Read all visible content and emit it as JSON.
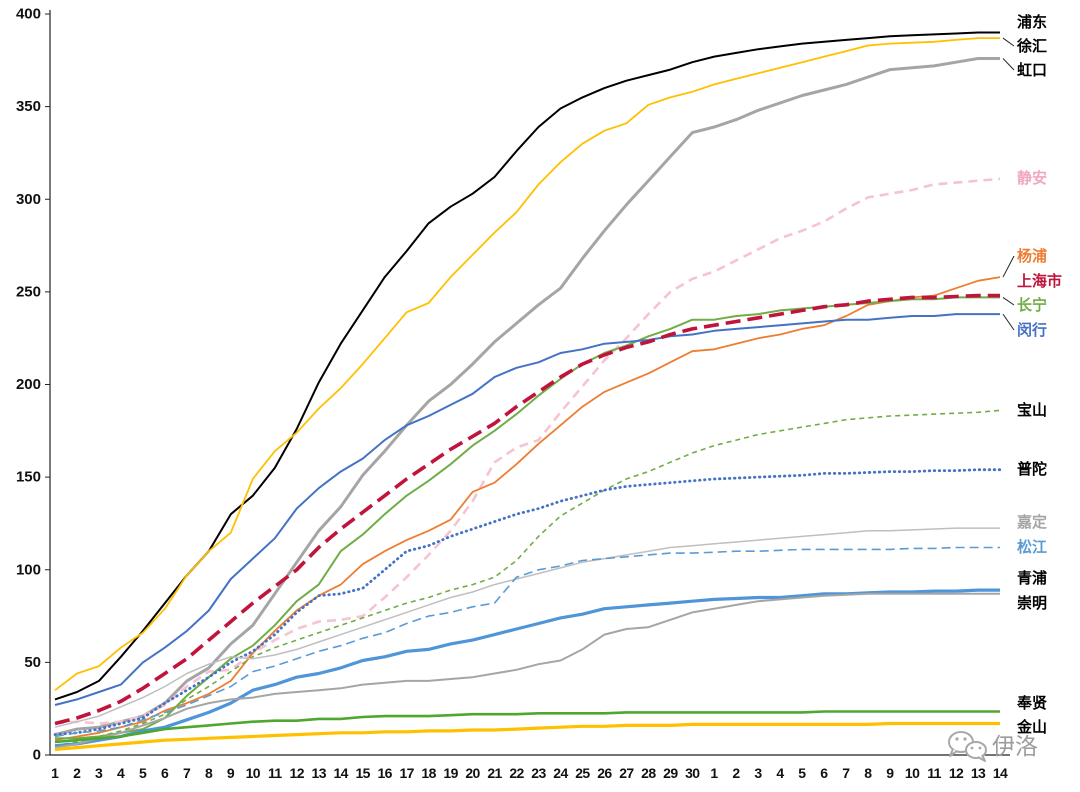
{
  "chart_data": {
    "type": "line",
    "grid": false,
    "legend": "right",
    "ylim": [
      0,
      400
    ],
    "yticks": [
      0,
      50,
      100,
      150,
      200,
      250,
      300,
      350,
      400
    ],
    "categories": [
      "1",
      "2",
      "3",
      "4",
      "5",
      "6",
      "7",
      "8",
      "9",
      "10",
      "11",
      "12",
      "13",
      "14",
      "15",
      "16",
      "17",
      "18",
      "19",
      "20",
      "21",
      "22",
      "23",
      "24",
      "25",
      "26",
      "27",
      "28",
      "29",
      "30",
      "1",
      "2",
      "3",
      "4",
      "5",
      "6",
      "7",
      "8",
      "9",
      "10",
      "11",
      "12",
      "13",
      "14"
    ],
    "series": [
      {
        "name": "浦东",
        "color": "#000000",
        "label_color": "#000000",
        "values": [
          30,
          34,
          40,
          53,
          67,
          82,
          97,
          110,
          130,
          140,
          155,
          176,
          201,
          222,
          240,
          258,
          272,
          287,
          296,
          303,
          312,
          326,
          339,
          349,
          355,
          360,
          364,
          367,
          370,
          374,
          377,
          379,
          381,
          382.5,
          384,
          385,
          386,
          387,
          388,
          388.5,
          389,
          389.5,
          390,
          390
        ]
      },
      {
        "name": "徐汇",
        "color": "#FFC000",
        "label_color": "#000000",
        "values": [
          35,
          44,
          48,
          58,
          66,
          79,
          97,
          110,
          120,
          149,
          164,
          174,
          187,
          198,
          211,
          225,
          239,
          244,
          258,
          270,
          282,
          293,
          308,
          320,
          330,
          337,
          341,
          351,
          355,
          358,
          362,
          365,
          368,
          371,
          374,
          377,
          380,
          383,
          384,
          384.5,
          385,
          386,
          387,
          387
        ]
      },
      {
        "name": "虹口",
        "color": "#A5A5A5",
        "label_color": "#000000",
        "values": [
          11,
          14,
          15,
          18,
          21,
          28,
          40,
          47,
          60,
          70,
          87,
          104,
          121,
          134,
          151,
          164,
          178,
          191,
          200,
          211,
          223,
          233,
          243,
          252,
          268,
          283,
          297,
          310,
          323,
          336,
          339,
          343,
          348,
          352,
          356,
          359,
          362,
          366,
          370,
          371,
          372,
          374,
          376,
          376
        ]
      },
      {
        "name": "静安",
        "color": "#F6C3D1",
        "label_color": "#F2A7BE",
        "values": [
          17,
          18,
          17,
          18,
          21,
          27,
          37,
          45,
          46,
          55,
          62,
          68,
          72,
          73,
          75,
          85,
          96,
          108,
          121,
          137,
          158,
          166,
          170,
          185,
          199,
          213,
          225,
          238,
          250,
          257,
          261,
          267,
          273,
          279,
          283,
          288,
          295,
          301,
          303,
          305,
          308,
          309,
          310,
          311
        ]
      },
      {
        "name": "杨浦",
        "color": "#ED7D31",
        "label_color": "#ED7D31",
        "values": [
          8,
          10,
          12,
          15,
          18,
          24,
          28,
          33,
          40,
          55,
          67,
          78,
          86,
          92,
          103,
          110,
          116,
          121,
          127,
          142,
          147,
          157,
          168,
          178,
          188,
          196,
          201,
          206,
          212,
          218,
          219,
          222,
          225,
          227,
          230,
          232,
          237,
          243,
          245,
          247,
          248,
          252,
          256,
          258
        ]
      },
      {
        "name": "上海市",
        "color": "#C0143C",
        "label_color": "#C0143C",
        "values": [
          17,
          20,
          24,
          29,
          36,
          44,
          52,
          62,
          72,
          82,
          91,
          100,
          112,
          122,
          131,
          140,
          149,
          157,
          165,
          172,
          179,
          188,
          196,
          204,
          211,
          216,
          220,
          223,
          227,
          230,
          232,
          234,
          236,
          238,
          240,
          242,
          243,
          245,
          246,
          247,
          247,
          247.5,
          248,
          248
        ]
      },
      {
        "name": "长宁",
        "color": "#70AD47",
        "label_color": "#70AD47",
        "values": [
          9,
          9,
          10,
          12,
          14,
          20,
          32,
          42,
          52,
          59,
          70,
          83,
          92,
          110,
          119,
          130,
          140,
          148,
          157,
          167,
          175,
          184,
          194,
          203,
          211,
          217,
          221,
          226,
          230,
          235,
          235,
          237,
          238,
          240,
          241,
          242,
          243,
          244,
          245,
          246,
          246,
          247,
          247,
          247
        ]
      },
      {
        "name": "闵行",
        "color": "#4472C4",
        "label_color": "#4472C4",
        "values": [
          27,
          30,
          34,
          38,
          50,
          58,
          67,
          78,
          95,
          106,
          117,
          133,
          144,
          153,
          160,
          170,
          178,
          183,
          189,
          195,
          204,
          209,
          212,
          217,
          219,
          222,
          223,
          224,
          226,
          227,
          229,
          230,
          231,
          232,
          233,
          234,
          235,
          235,
          236,
          237,
          237,
          238,
          238,
          238
        ]
      },
      {
        "name": "宝山",
        "color": "#70AD47",
        "label_color": "#000000",
        "values": [
          5,
          7,
          10,
          13,
          17,
          22,
          30,
          37,
          45,
          53,
          58,
          62,
          66,
          70,
          74,
          78,
          82,
          85,
          89,
          92,
          96,
          105,
          118,
          129,
          136,
          143,
          149,
          153,
          158,
          163,
          167,
          170,
          173,
          175,
          177,
          179,
          181,
          182,
          183,
          183.5,
          184,
          184.5,
          185,
          186
        ]
      },
      {
        "name": "普陀",
        "color": "#4472C4",
        "label_color": "#000000",
        "values": [
          11,
          12,
          14,
          17,
          20,
          28,
          35,
          42,
          50,
          56,
          65,
          77,
          86,
          87,
          90,
          100,
          110,
          113,
          118,
          122,
          126,
          130,
          133,
          137,
          140,
          143,
          145,
          146,
          147,
          148,
          149,
          149.5,
          150,
          150.5,
          151,
          152,
          152,
          152.5,
          153,
          153,
          153.5,
          153.5,
          154,
          154
        ]
      },
      {
        "name": "嘉定",
        "color": "#BFBFBF",
        "label_color": "#A5A5A5",
        "values": [
          15,
          18,
          21,
          26,
          31,
          37,
          44,
          49,
          53,
          52,
          54,
          57,
          61,
          65,
          69,
          73,
          77,
          81,
          85,
          88,
          92,
          95,
          98,
          101,
          104,
          106,
          108,
          110,
          112,
          113,
          114,
          115,
          116,
          117,
          118,
          119,
          120,
          121,
          121,
          121.5,
          122,
          122.5,
          122.5,
          122.5
        ]
      },
      {
        "name": "松江",
        "color": "#5B9BD5",
        "label_color": "#5B9BD5",
        "values": [
          10,
          12,
          13,
          15,
          19,
          23,
          27,
          32,
          37,
          45,
          48,
          52,
          56,
          59,
          63,
          66,
          71,
          75,
          77,
          80,
          82,
          96,
          100,
          102,
          105,
          106,
          107,
          108,
          109,
          109,
          109.5,
          110,
          110,
          110.5,
          111,
          111,
          111,
          111,
          111,
          111.5,
          111.5,
          112,
          112,
          112
        ]
      },
      {
        "name": "青浦",
        "color": "#4E95D9",
        "label_color": "#000000",
        "values": [
          5,
          6,
          8,
          10,
          13,
          15,
          19,
          23,
          28,
          35,
          38,
          42,
          44,
          47,
          51,
          53,
          56,
          57,
          60,
          62,
          65,
          68,
          71,
          74,
          76,
          79,
          80,
          81,
          82,
          83,
          84,
          84.5,
          85,
          85,
          86,
          87,
          87,
          87.5,
          88,
          88,
          88.5,
          88.5,
          89,
          89
        ]
      },
      {
        "name": "崇明",
        "color": "#A5A5A5",
        "label_color": "#000000",
        "values": [
          4,
          6,
          9,
          12,
          16,
          20,
          25,
          28,
          30,
          31,
          33,
          34,
          35,
          36,
          38,
          39,
          40,
          40,
          41,
          42,
          44,
          46,
          49,
          51,
          57,
          65,
          68,
          69,
          73,
          77,
          79,
          81,
          83,
          84,
          85,
          86,
          86.5,
          87,
          87,
          87,
          87,
          87,
          87,
          87
        ]
      },
      {
        "name": "奉贤",
        "color": "#4EA72E",
        "label_color": "#000000",
        "values": [
          7,
          8,
          9,
          10,
          12,
          14,
          15,
          16,
          17,
          18,
          18.5,
          18.5,
          19.5,
          19.5,
          20.5,
          21,
          21,
          21,
          21.5,
          22,
          22,
          22,
          22.5,
          22.5,
          22.5,
          22.5,
          23,
          23,
          23,
          23,
          23,
          23,
          23,
          23,
          23,
          23.5,
          23.5,
          23.5,
          23.5,
          23.5,
          23.5,
          23.5,
          23.5,
          23.5
        ]
      },
      {
        "name": "金山",
        "color": "#FFC000",
        "label_color": "#000000",
        "values": [
          3,
          4,
          5,
          6,
          7,
          8,
          8.5,
          9,
          9.5,
          10,
          10.5,
          11,
          11.5,
          12,
          12,
          12.5,
          12.5,
          13,
          13,
          13.5,
          13.5,
          14,
          14.5,
          15,
          15.5,
          15.5,
          16,
          16,
          16,
          16.5,
          16.5,
          16.5,
          16.5,
          16.5,
          16.5,
          16.5,
          16.5,
          16.5,
          17,
          17,
          17,
          17,
          17,
          17
        ]
      }
    ]
  },
  "watermark": {
    "icon": "wechat-icon",
    "text": "伊洛"
  }
}
